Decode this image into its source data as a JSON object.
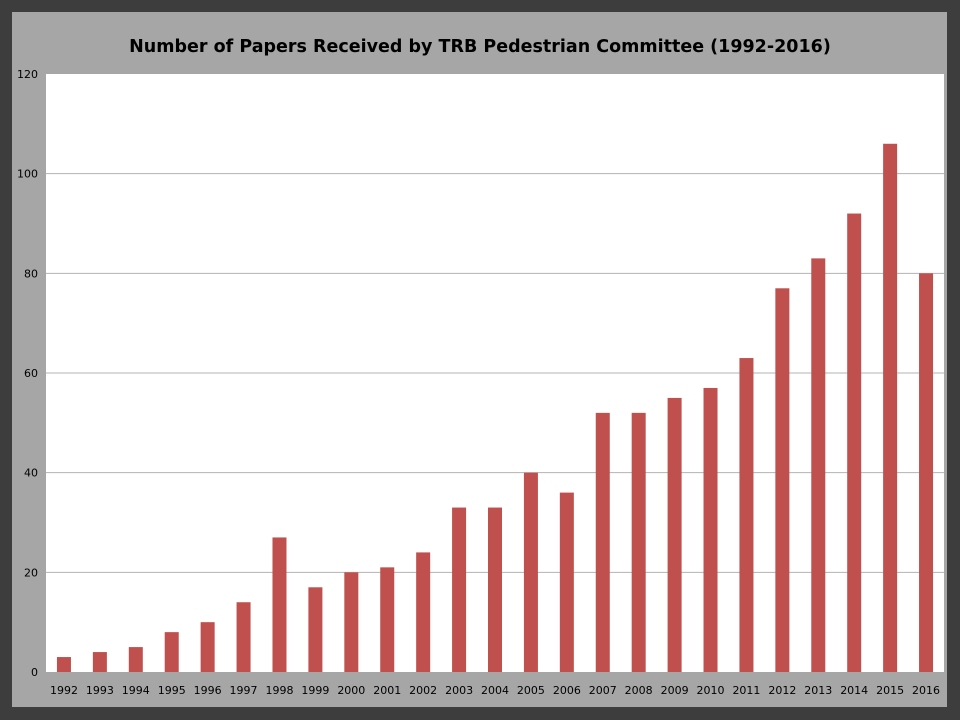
{
  "chart_data": {
    "type": "bar",
    "title": "Number of Papers Received by TRB Pedestrian Committee (1992-2016)",
    "xlabel": "",
    "ylabel": "",
    "categories": [
      "1992",
      "1993",
      "1994",
      "1995",
      "1996",
      "1997",
      "1998",
      "1999",
      "2000",
      "2001",
      "2002",
      "2003",
      "2004",
      "2005",
      "2006",
      "2007",
      "2008",
      "2009",
      "2010",
      "2011",
      "2012",
      "2013",
      "2014",
      "2015",
      "2016"
    ],
    "values": [
      3,
      4,
      5,
      8,
      10,
      14,
      27,
      17,
      20,
      21,
      24,
      33,
      33,
      40,
      36,
      52,
      52,
      55,
      57,
      63,
      77,
      83,
      92,
      106,
      80
    ],
    "ylim": [
      0,
      120
    ],
    "yticks": [
      0,
      20,
      40,
      60,
      80,
      100,
      120
    ],
    "grid": true,
    "legend": "none",
    "bar_color": "#c0504d",
    "plot_background": "#ffffff",
    "frame_background": "#a6a6a6"
  }
}
